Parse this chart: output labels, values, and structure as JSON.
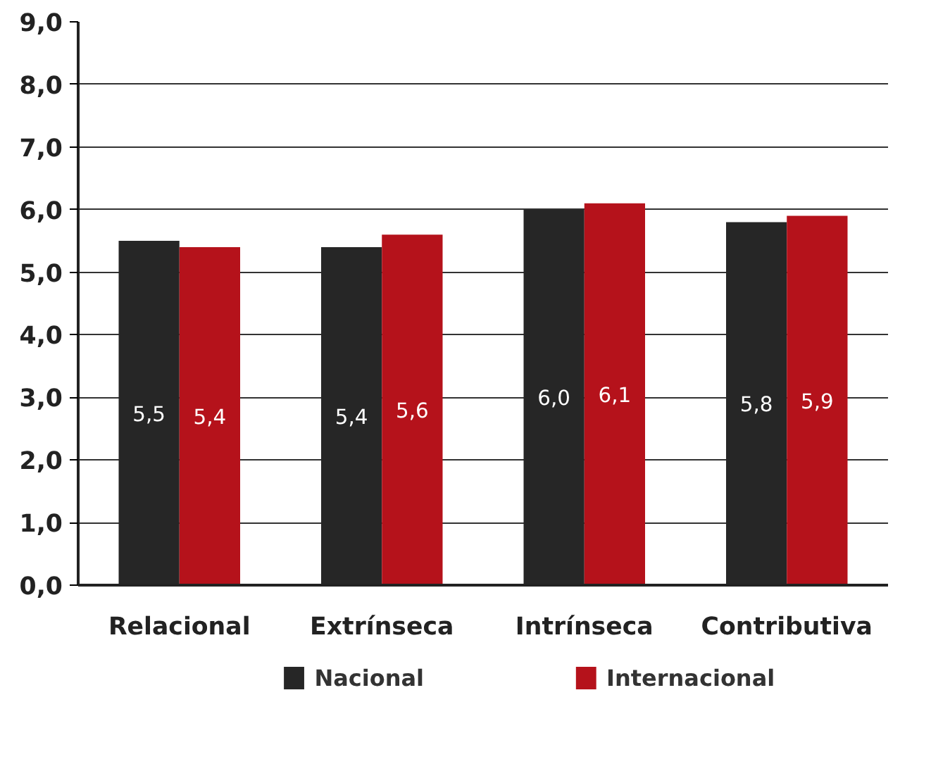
{
  "chart_data": {
    "type": "bar",
    "categories": [
      "Relacional",
      "Extrínseca",
      "Intrínseca",
      "Contributiva"
    ],
    "series": [
      {
        "name": "Nacional",
        "color": "#262626",
        "values": [
          5.5,
          5.4,
          6.0,
          5.8
        ],
        "value_labels": [
          "5,5",
          "5,4",
          "6,0",
          "5,8"
        ]
      },
      {
        "name": "Internacional",
        "color": "#b5121b",
        "values": [
          5.4,
          5.6,
          6.1,
          5.9
        ],
        "value_labels": [
          "5,4",
          "5,6",
          "6,1",
          "5,9"
        ]
      }
    ],
    "ylim": [
      0,
      9
    ],
    "yticks": [
      {
        "value": 0,
        "label": "0,0"
      },
      {
        "value": 1,
        "label": "1,0"
      },
      {
        "value": 2,
        "label": "2,0"
      },
      {
        "value": 3,
        "label": "3,0"
      },
      {
        "value": 4,
        "label": "4,0"
      },
      {
        "value": 5,
        "label": "5,0"
      },
      {
        "value": 6,
        "label": "6,0"
      },
      {
        "value": 7,
        "label": "7,0"
      },
      {
        "value": 8,
        "label": "8,0"
      },
      {
        "value": 9,
        "label": "9,0"
      }
    ],
    "grid": "y",
    "legend": "bottom"
  }
}
